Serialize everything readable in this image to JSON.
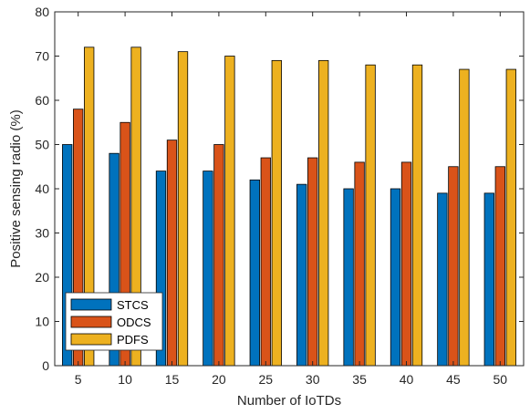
{
  "chart_data": {
    "type": "bar",
    "xlabel": "Number of IoTDs",
    "ylabel": "Positive sensing radio (%)",
    "categories": [
      "5",
      "10",
      "15",
      "20",
      "25",
      "30",
      "35",
      "40",
      "45",
      "50"
    ],
    "ylim": [
      0,
      80
    ],
    "yticks": [
      0,
      10,
      20,
      30,
      40,
      50,
      60,
      70,
      80
    ],
    "grid": false,
    "legend_position": "bottom-left",
    "series": [
      {
        "name": "STCS",
        "color": "#0072BD",
        "values": [
          50,
          48,
          44,
          44,
          42,
          41,
          40,
          40,
          39,
          39
        ]
      },
      {
        "name": "ODCS",
        "color": "#D95319",
        "values": [
          58,
          55,
          51,
          50,
          47,
          47,
          46,
          46,
          45,
          45
        ]
      },
      {
        "name": "PDFS",
        "color": "#EDB120",
        "values": [
          72,
          72,
          71,
          70,
          69,
          69,
          68,
          68,
          67,
          67
        ]
      }
    ]
  }
}
